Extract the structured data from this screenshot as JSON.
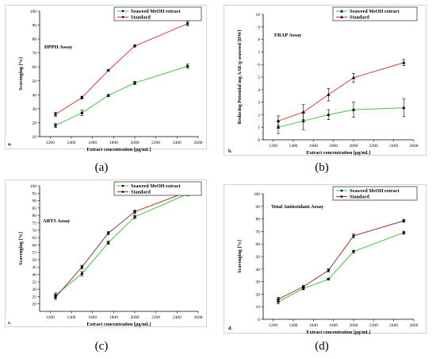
{
  "captions": [
    "(a)",
    "(b)",
    "(c)",
    "(d)"
  ],
  "chart_data": [
    {
      "type": "line",
      "title": "DPPH Assay",
      "panel_label": "a.",
      "xlabel": "Extract concentration [µg/mL]",
      "ylabel": "Scavenging [%]",
      "xlim": [
        1100,
        2600
      ],
      "xticks": [
        1200,
        1400,
        1600,
        1800,
        2000,
        2200,
        2400,
        2600
      ],
      "ylim": [
        10,
        100
      ],
      "yticks": [
        10,
        20,
        30,
        40,
        50,
        60,
        70,
        80,
        90,
        100
      ],
      "x": [
        1250,
        1500,
        1750,
        2000,
        2500
      ],
      "legend_position": "top-right",
      "series": [
        {
          "name": "Seaweed MeOH extract",
          "color": "#3cc83c",
          "marker": "square",
          "values": [
            18,
            27,
            39.5,
            48.5,
            60.5
          ],
          "errors": [
            1.5,
            2,
            0.8,
            1.2,
            1.5
          ]
        },
        {
          "name": "Standard",
          "color": "#e03c3c",
          "marker": "square",
          "values": [
            26,
            38,
            57.5,
            75,
            91
          ],
          "errors": [
            1.5,
            1,
            0.6,
            0.8,
            1.5
          ]
        }
      ]
    },
    {
      "type": "line",
      "title": "FRAP Assay",
      "panel_label": "b.",
      "xlabel": "Extract concentration [µg/mL]",
      "ylabel": "Reducing Potential mg AAE/g seaweed [DW]",
      "xlim": [
        1100,
        2600
      ],
      "xticks": [
        1200,
        1400,
        1600,
        1800,
        2000,
        2200,
        2400,
        2600
      ],
      "ylim": [
        0,
        10
      ],
      "yticks": [
        0,
        1,
        2,
        3,
        4,
        5,
        6,
        7,
        8,
        9,
        10
      ],
      "x": [
        1250,
        1500,
        1750,
        2000,
        2500
      ],
      "legend_position": "top-right",
      "series": [
        {
          "name": "Seaweed MeOH extract",
          "color": "#3cc83c",
          "marker": "triangle",
          "values": [
            1,
            1.5,
            2,
            2.4,
            2.55
          ],
          "errors": [
            0.5,
            0.7,
            0.4,
            0.6,
            0.7
          ]
        },
        {
          "name": "Standard",
          "color": "#e03c3c",
          "marker": "triangle",
          "values": [
            1.5,
            2.2,
            3.6,
            4.95,
            6.15
          ],
          "errors": [
            0.4,
            0.6,
            0.5,
            0.35,
            0.25
          ]
        }
      ]
    },
    {
      "type": "line",
      "title": "ABTS Assay",
      "panel_label": "c.",
      "xlabel": "Extract concentration [µg/mL]",
      "ylabel": "Scavenging [%]",
      "xlim": [
        1100,
        2600
      ],
      "xticks": [
        1200,
        1400,
        1600,
        1800,
        2000,
        2200,
        2400,
        2600
      ],
      "ylim": [
        15,
        100
      ],
      "yticks": [
        20,
        25,
        30,
        35,
        40,
        45,
        50,
        55,
        60,
        65,
        70,
        75,
        80,
        85,
        90,
        95,
        100
      ],
      "x": [
        1250,
        1500,
        1750,
        2000,
        2500
      ],
      "legend_position": "top-right",
      "series": [
        {
          "name": "Seaweed MeOH extract",
          "color": "#3cc83c",
          "marker": "square",
          "values": [
            26,
            40.5,
            61.5,
            79,
            94.5
          ],
          "errors": [
            1.5,
            1.5,
            1,
            1.2,
            1.2
          ]
        },
        {
          "name": "Standard",
          "color": "#a0322d",
          "marker": "square",
          "values": [
            24.5,
            45,
            68,
            82.5,
            96
          ],
          "errors": [
            1.5,
            1.2,
            1,
            1,
            0.8
          ]
        }
      ]
    },
    {
      "type": "line",
      "title": "Total Antioxidant Assay",
      "panel_label": "d.",
      "xlabel": "Extract concentration [µg/mL]",
      "ylabel": "Scavenging [%]",
      "xlim": [
        1100,
        2600
      ],
      "xticks": [
        1200,
        1400,
        1600,
        1800,
        2000,
        2200,
        2400,
        2600
      ],
      "ylim": [
        0,
        100
      ],
      "yticks": [
        0,
        10,
        20,
        30,
        40,
        50,
        60,
        70,
        80,
        90,
        100
      ],
      "x": [
        1250,
        1500,
        1750,
        2000,
        2500
      ],
      "legend_position": "top-right",
      "series": [
        {
          "name": "Seaweed MeOH extract",
          "color": "#3cc83c",
          "marker": "circle",
          "values": [
            14,
            24.5,
            32,
            54,
            69
          ],
          "errors": [
            1.5,
            1,
            0.8,
            1,
            1.2
          ]
        },
        {
          "name": "Standard",
          "color": "#a0322d",
          "marker": "circle",
          "values": [
            16,
            26,
            39,
            66.5,
            78.5
          ],
          "errors": [
            1.5,
            1,
            1.2,
            1.5,
            1.2
          ]
        }
      ]
    }
  ]
}
